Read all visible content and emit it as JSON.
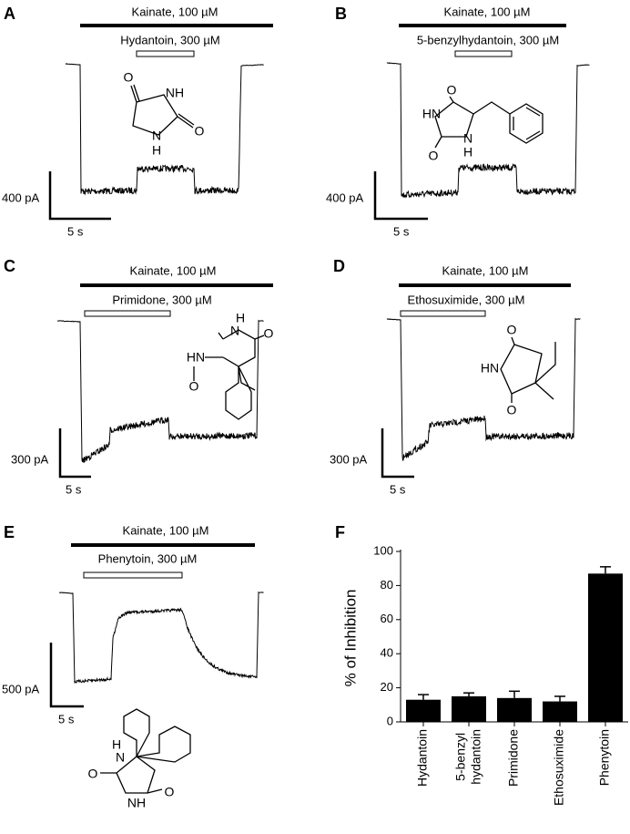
{
  "panels": {
    "A": {
      "label": "A",
      "agonist": "Kainate, 100 µM",
      "drug": "Hydantoin, 300 µM",
      "scale_y": "400 pA",
      "scale_x": "5 s",
      "structure": [
        "O",
        "NH",
        "O",
        "N",
        "H"
      ]
    },
    "B": {
      "label": "B",
      "agonist": "Kainate, 100 µM",
      "drug": "5-benzylhydantoin, 300 µM",
      "scale_y": "400 pA",
      "scale_x": "5 s",
      "structure": [
        "O",
        "HN",
        "N",
        "H",
        "O"
      ]
    },
    "C": {
      "label": "C",
      "agonist": "Kainate, 100 µM",
      "drug": "Primidone, 300 µM",
      "scale_y": "300 pA",
      "scale_x": "5 s",
      "structure": [
        "H",
        "N",
        "O",
        "HN",
        "O"
      ]
    },
    "D": {
      "label": "D",
      "agonist": "Kainate, 100 µM",
      "drug": "Ethosuximide, 300 µM",
      "scale_y": "300 pA",
      "scale_x": "5 s",
      "structure": [
        "O",
        "HN",
        "O"
      ]
    },
    "E": {
      "label": "E",
      "agonist": "Kainate, 100 µM",
      "drug": "Phenytoin, 300 µM",
      "scale_y": "500 pA",
      "scale_x": "5 s",
      "structure": [
        "H",
        "N",
        "O",
        "NH",
        "O"
      ]
    }
  },
  "chart_data": {
    "type": "bar",
    "label": "F",
    "ylabel": "% of Inhibition",
    "categories": [
      "Hydantoin",
      "5-benzyl hydantoin",
      "Primidone",
      "Ethosuximide",
      "Phenytoin"
    ],
    "values": [
      13,
      15,
      14,
      12,
      87
    ],
    "errors": [
      3,
      2,
      4,
      3,
      4
    ],
    "color": "#000000",
    "ylim": [
      0,
      100
    ],
    "yticks": [
      0,
      20,
      40,
      60,
      80,
      100
    ]
  }
}
